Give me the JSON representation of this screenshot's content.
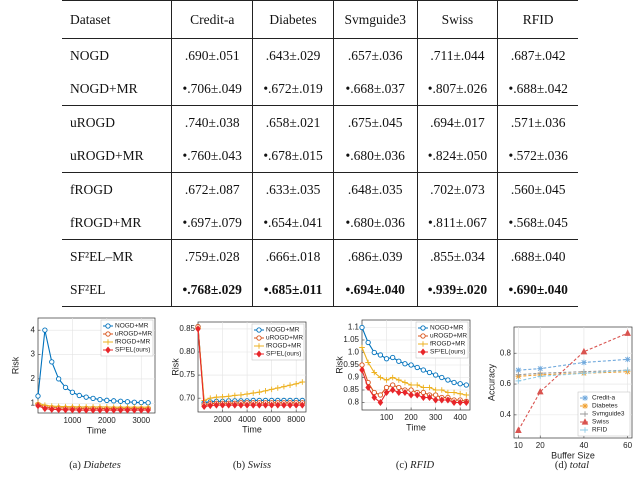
{
  "table": {
    "header": [
      "Dataset",
      "Credit-a",
      "Diabetes",
      "Svmguide3",
      "Swiss",
      "RFID"
    ],
    "rows": [
      [
        "NOGD",
        ".690±.051",
        ".643±.029",
        ".657±.036",
        ".711±.044",
        ".687±.042"
      ],
      [
        "NOGD+MR",
        "•.706±.049",
        "•.672±.019",
        "•.668±.037",
        "•.807±.026",
        "•.688±.042"
      ],
      [
        "uROGD",
        ".740±.038",
        ".658±.021",
        ".675±.045",
        ".694±.017",
        ".571±.036"
      ],
      [
        "uROGD+MR",
        "•.760±.043",
        "•.678±.015",
        "•.680±.036",
        "•.824±.050",
        "•.572±.036"
      ],
      [
        "fROGD",
        ".672±.087",
        ".633±.035",
        ".648±.035",
        ".702±.073",
        ".560±.045"
      ],
      [
        "fROGD+MR",
        "•.697±.079",
        "•.654±.041",
        "•.680±.036",
        "•.811±.067",
        "•.568±.045"
      ],
      [
        "SF²EL–MR",
        ".759±.028",
        ".666±.018",
        ".686±.039",
        ".855±.034",
        ".688±.040"
      ],
      [
        "SF²EL",
        "•.768±.029",
        "•.685±.011",
        "•.694±.040",
        "•.939±.020",
        "•.690±.040"
      ]
    ]
  },
  "chart_data": [
    {
      "type": "line",
      "panel": "(a)",
      "subtitle": "Diabetes",
      "x_label": "Time",
      "y_label": "Risk",
      "x": [
        0,
        200,
        400,
        600,
        800,
        1000,
        1200,
        1400,
        1600,
        1800,
        2000,
        2200,
        2400,
        2600,
        2800,
        3000,
        3200
      ],
      "xlim": [
        0,
        3400
      ],
      "ylim": [
        0.6,
        4.5
      ],
      "xticks": [
        1000,
        2000,
        3000
      ],
      "yticks": [
        1,
        2,
        3,
        4
      ],
      "grid": true,
      "legend": "upper right",
      "linestyle": "solid",
      "series": [
        {
          "name": "NOGD+MR",
          "color": "#0072bd",
          "marker": "circle",
          "values": [
            1.3,
            4.0,
            2.7,
            2.0,
            1.65,
            1.45,
            1.32,
            1.25,
            1.2,
            1.15,
            1.12,
            1.1,
            1.08,
            1.06,
            1.04,
            1.03,
            1.02
          ]
        },
        {
          "name": "uROGD+MR",
          "color": "#d95319",
          "marker": "circle",
          "values": [
            0.95,
            0.85,
            0.82,
            0.81,
            0.8,
            0.8,
            0.79,
            0.79,
            0.79,
            0.79,
            0.78,
            0.78,
            0.78,
            0.78,
            0.78,
            0.78,
            0.78
          ]
        },
        {
          "name": "fROGD+MR",
          "color": "#edb120",
          "marker": "plus",
          "values": [
            1.0,
            0.92,
            0.88,
            0.87,
            0.86,
            0.86,
            0.85,
            0.85,
            0.85,
            0.85,
            0.85,
            0.84,
            0.84,
            0.84,
            0.84,
            0.84,
            0.84
          ]
        },
        {
          "name": "SF²EL(ours)",
          "color": "#e8262a",
          "marker": "diamond",
          "values": [
            0.9,
            0.78,
            0.75,
            0.74,
            0.73,
            0.73,
            0.72,
            0.72,
            0.72,
            0.72,
            0.72,
            0.72,
            0.72,
            0.72,
            0.72,
            0.72,
            0.72
          ]
        }
      ]
    },
    {
      "type": "line",
      "panel": "(b)",
      "subtitle": "Swiss",
      "x_label": "Time",
      "y_label": "Risk",
      "x": [
        0,
        500,
        1000,
        1500,
        2000,
        2500,
        3000,
        3500,
        4000,
        4500,
        5000,
        5500,
        6000,
        6500,
        7000,
        7500,
        8000,
        8500
      ],
      "xlim": [
        0,
        8800
      ],
      "ylim": [
        0.67,
        0.865
      ],
      "xticks": [
        2000,
        4000,
        6000,
        8000
      ],
      "yticks": [
        {
          "value": 0.7,
          "label": "0.70"
        },
        0.75,
        {
          "value": 0.8,
          "label": "0.80"
        },
        0.85
      ],
      "grid": true,
      "legend": "upper right",
      "linestyle": "solid",
      "series": [
        {
          "name": "NOGD+MR",
          "color": "#0072bd",
          "marker": "circle",
          "values": [
            0.855,
            0.69,
            0.692,
            0.693,
            0.693,
            0.694,
            0.694,
            0.694,
            0.694,
            0.695,
            0.695,
            0.695,
            0.695,
            0.695,
            0.695,
            0.695,
            0.695,
            0.695
          ]
        },
        {
          "name": "uROGD+MR",
          "color": "#d95319",
          "marker": "circle",
          "values": [
            0.855,
            0.686,
            0.688,
            0.689,
            0.689,
            0.689,
            0.689,
            0.69,
            0.69,
            0.69,
            0.69,
            0.69,
            0.69,
            0.69,
            0.69,
            0.69,
            0.69,
            0.69
          ]
        },
        {
          "name": "fROGD+MR",
          "color": "#edb120",
          "marker": "plus",
          "values": [
            0.852,
            0.695,
            0.7,
            0.702,
            0.703,
            0.704,
            0.706,
            0.707,
            0.709,
            0.711,
            0.713,
            0.716,
            0.719,
            0.722,
            0.725,
            0.728,
            0.731,
            0.735
          ]
        },
        {
          "name": "SF²EL(ours)",
          "color": "#e8262a",
          "marker": "diamond",
          "values": [
            0.85,
            0.682,
            0.684,
            0.685,
            0.685,
            0.685,
            0.685,
            0.685,
            0.685,
            0.685,
            0.685,
            0.685,
            0.685,
            0.685,
            0.685,
            0.685,
            0.685,
            0.685
          ]
        }
      ]
    },
    {
      "type": "line",
      "panel": "(c)",
      "subtitle": "RFID",
      "x_label": "Time",
      "y_label": "Risk",
      "x": [
        0,
        25,
        50,
        75,
        100,
        125,
        150,
        175,
        200,
        225,
        250,
        275,
        300,
        325,
        350,
        375,
        400,
        425
      ],
      "xlim": [
        0,
        440
      ],
      "ylim": [
        0.77,
        1.13
      ],
      "xticks": [
        100,
        200,
        300,
        400
      ],
      "yticks": [
        0.8,
        0.85,
        0.9,
        0.95,
        {
          "value": 1,
          "label": "1.0"
        },
        1.05,
        1.1
      ],
      "grid": true,
      "legend": "upper right",
      "linestyle": "solid",
      "series": [
        {
          "name": "NOGD+MR",
          "color": "#0072bd",
          "marker": "circle",
          "values": [
            1.1,
            1.04,
            1.0,
            0.99,
            0.975,
            0.98,
            0.965,
            0.955,
            0.95,
            0.94,
            0.93,
            0.92,
            0.91,
            0.9,
            0.89,
            0.88,
            0.875,
            0.87
          ]
        },
        {
          "name": "uROGD+MR",
          "color": "#d95319",
          "marker": "circle",
          "values": [
            0.95,
            0.88,
            0.84,
            0.83,
            0.86,
            0.87,
            0.86,
            0.85,
            0.85,
            0.84,
            0.84,
            0.83,
            0.83,
            0.82,
            0.82,
            0.81,
            0.81,
            0.805
          ]
        },
        {
          "name": "fROGD+MR",
          "color": "#edb120",
          "marker": "plus",
          "values": [
            1.02,
            0.96,
            0.92,
            0.9,
            0.89,
            0.9,
            0.89,
            0.88,
            0.87,
            0.87,
            0.86,
            0.86,
            0.85,
            0.85,
            0.84,
            0.84,
            0.835,
            0.83
          ]
        },
        {
          "name": "SF²EL(ours)",
          "color": "#e8262a",
          "marker": "diamond",
          "values": [
            0.93,
            0.86,
            0.82,
            0.8,
            0.84,
            0.85,
            0.84,
            0.84,
            0.83,
            0.83,
            0.82,
            0.82,
            0.81,
            0.81,
            0.81,
            0.8,
            0.8,
            0.8
          ]
        }
      ]
    },
    {
      "type": "line",
      "panel": "(d)",
      "subtitle": "total",
      "x_label": "Buffer Size",
      "y_label": "Accuracy",
      "x": [
        10,
        20,
        40,
        60
      ],
      "xlim": [
        8,
        62
      ],
      "ylim": [
        0.25,
        0.97
      ],
      "xticks": [
        10,
        20,
        40,
        60
      ],
      "yticks": [
        0.4,
        0.6,
        0.8
      ],
      "grid": true,
      "legend": "lower right",
      "linestyle": "dashed",
      "series": [
        {
          "name": "Credit-a",
          "color": "#6fa8dc",
          "marker": "star",
          "values": [
            0.69,
            0.7,
            0.74,
            0.76
          ]
        },
        {
          "name": "Diabetes",
          "color": "#f0a030",
          "marker": "star",
          "values": [
            0.65,
            0.66,
            0.67,
            0.68
          ]
        },
        {
          "name": "Svmguide3",
          "color": "#999999",
          "marker": "plus",
          "values": [
            0.66,
            0.67,
            0.68,
            0.69
          ]
        },
        {
          "name": "Swiss",
          "color": "#d9534f",
          "marker": "triangle",
          "values": [
            0.3,
            0.55,
            0.81,
            0.93
          ]
        },
        {
          "name": "RFID",
          "color": "#8ecae6",
          "marker": "plus",
          "values": [
            0.62,
            0.65,
            0.67,
            0.69
          ]
        }
      ]
    }
  ]
}
